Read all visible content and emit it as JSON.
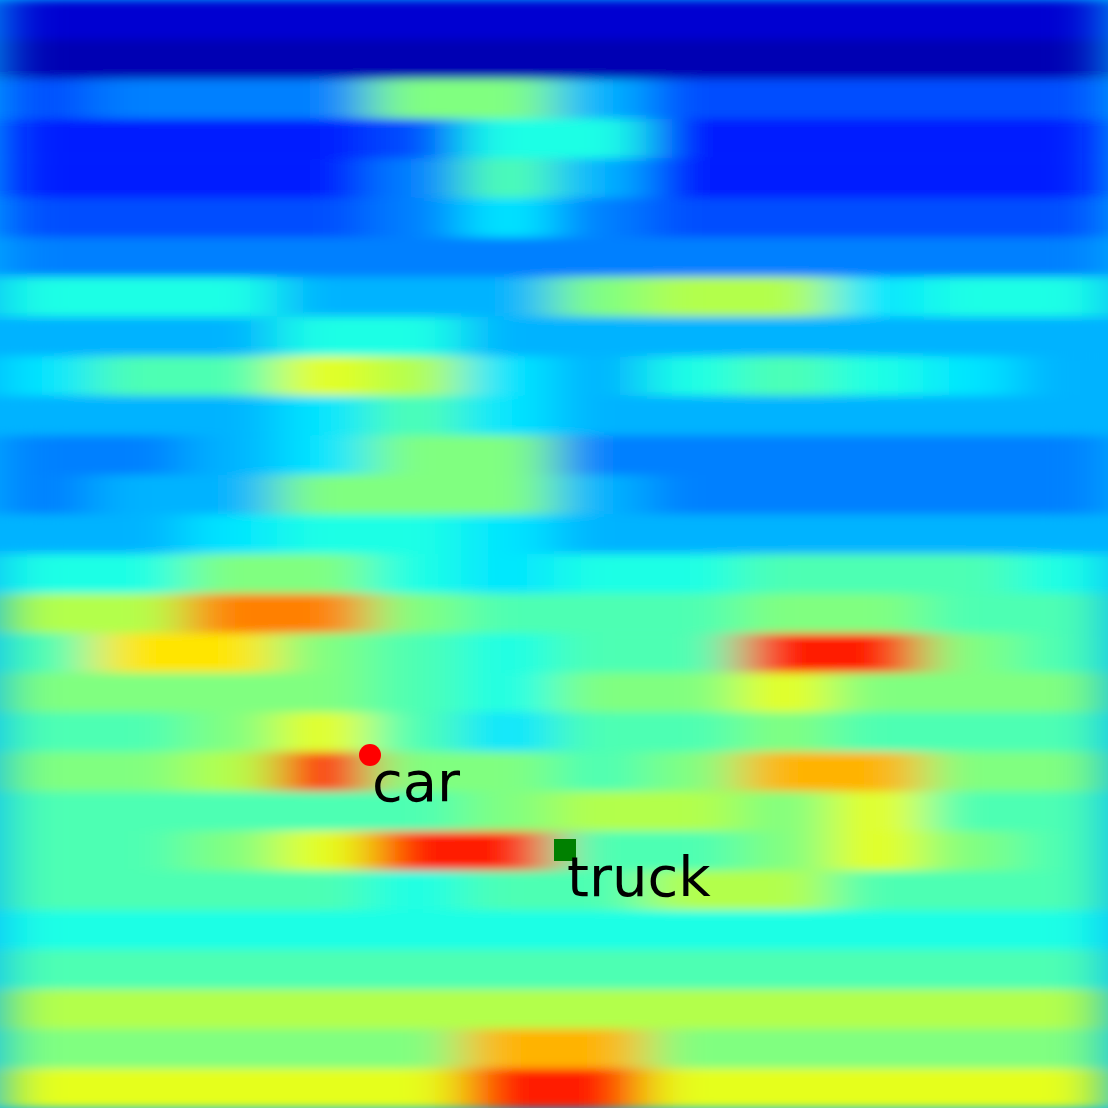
{
  "chart_data": {
    "type": "heatmap",
    "xlim": [
      0,
      1108
    ],
    "ylim": [
      0,
      1108
    ],
    "zlim": [
      0,
      1
    ],
    "tick_labels": false,
    "cells": [
      [
        0.08,
        0.08,
        0.08,
        0.08,
        0.08,
        0.08,
        0.08,
        0.08,
        0.08,
        0.08,
        0.08,
        0.08
      ],
      [
        0.05,
        0.05,
        0.05,
        0.05,
        0.05,
        0.05,
        0.05,
        0.05,
        0.05,
        0.05,
        0.05,
        0.05
      ],
      [
        0.2,
        0.25,
        0.25,
        0.25,
        0.5,
        0.5,
        0.3,
        0.2,
        0.2,
        0.2,
        0.2,
        0.2
      ],
      [
        0.15,
        0.15,
        0.15,
        0.15,
        0.2,
        0.4,
        0.4,
        0.15,
        0.15,
        0.15,
        0.15,
        0.15
      ],
      [
        0.15,
        0.15,
        0.15,
        0.15,
        0.25,
        0.45,
        0.3,
        0.15,
        0.15,
        0.15,
        0.15,
        0.15
      ],
      [
        0.2,
        0.2,
        0.2,
        0.2,
        0.25,
        0.35,
        0.25,
        0.2,
        0.2,
        0.2,
        0.2,
        0.2
      ],
      [
        0.25,
        0.25,
        0.25,
        0.25,
        0.25,
        0.25,
        0.25,
        0.25,
        0.25,
        0.25,
        0.25,
        0.25
      ],
      [
        0.4,
        0.4,
        0.4,
        0.3,
        0.3,
        0.3,
        0.5,
        0.55,
        0.55,
        0.35,
        0.4,
        0.4
      ],
      [
        0.3,
        0.3,
        0.3,
        0.4,
        0.4,
        0.3,
        0.3,
        0.3,
        0.3,
        0.3,
        0.3,
        0.3
      ],
      [
        0.35,
        0.45,
        0.45,
        0.6,
        0.55,
        0.35,
        0.3,
        0.4,
        0.45,
        0.4,
        0.35,
        0.3
      ],
      [
        0.3,
        0.3,
        0.3,
        0.35,
        0.45,
        0.35,
        0.3,
        0.3,
        0.3,
        0.3,
        0.3,
        0.3
      ],
      [
        0.25,
        0.25,
        0.3,
        0.35,
        0.5,
        0.5,
        0.25,
        0.25,
        0.25,
        0.25,
        0.25,
        0.25
      ],
      [
        0.25,
        0.3,
        0.3,
        0.5,
        0.5,
        0.5,
        0.3,
        0.25,
        0.25,
        0.25,
        0.25,
        0.25
      ],
      [
        0.3,
        0.3,
        0.35,
        0.4,
        0.4,
        0.35,
        0.3,
        0.3,
        0.3,
        0.3,
        0.3,
        0.3
      ],
      [
        0.4,
        0.4,
        0.5,
        0.5,
        0.4,
        0.35,
        0.4,
        0.4,
        0.45,
        0.45,
        0.45,
        0.4
      ],
      [
        0.55,
        0.55,
        0.75,
        0.75,
        0.5,
        0.45,
        0.45,
        0.45,
        0.5,
        0.5,
        0.45,
        0.45
      ],
      [
        0.45,
        0.65,
        0.65,
        0.5,
        0.45,
        0.4,
        0.45,
        0.45,
        0.85,
        0.85,
        0.5,
        0.45
      ],
      [
        0.5,
        0.5,
        0.5,
        0.5,
        0.45,
        0.4,
        0.5,
        0.5,
        0.6,
        0.5,
        0.5,
        0.5
      ],
      [
        0.45,
        0.45,
        0.5,
        0.6,
        0.45,
        0.35,
        0.45,
        0.45,
        0.5,
        0.45,
        0.45,
        0.45
      ],
      [
        0.5,
        0.5,
        0.55,
        0.85,
        0.5,
        0.5,
        0.45,
        0.5,
        0.7,
        0.7,
        0.5,
        0.5
      ],
      [
        0.45,
        0.45,
        0.45,
        0.45,
        0.45,
        0.5,
        0.55,
        0.55,
        0.5,
        0.6,
        0.45,
        0.45
      ],
      [
        0.45,
        0.45,
        0.5,
        0.6,
        0.85,
        0.85,
        0.45,
        0.45,
        0.5,
        0.6,
        0.5,
        0.45
      ],
      [
        0.45,
        0.45,
        0.45,
        0.45,
        0.4,
        0.45,
        0.45,
        0.55,
        0.55,
        0.45,
        0.45,
        0.45
      ],
      [
        0.4,
        0.4,
        0.4,
        0.4,
        0.4,
        0.4,
        0.4,
        0.4,
        0.4,
        0.4,
        0.4,
        0.4
      ],
      [
        0.45,
        0.45,
        0.45,
        0.45,
        0.45,
        0.45,
        0.45,
        0.45,
        0.45,
        0.45,
        0.45,
        0.45
      ],
      [
        0.55,
        0.55,
        0.55,
        0.55,
        0.55,
        0.55,
        0.55,
        0.55,
        0.55,
        0.55,
        0.55,
        0.55
      ],
      [
        0.5,
        0.5,
        0.5,
        0.5,
        0.5,
        0.7,
        0.7,
        0.5,
        0.5,
        0.5,
        0.5,
        0.5
      ],
      [
        0.6,
        0.6,
        0.6,
        0.6,
        0.6,
        0.85,
        0.85,
        0.6,
        0.6,
        0.6,
        0.6,
        0.6
      ]
    ],
    "annotations": [
      {
        "label": "car",
        "x": 370,
        "y": 353,
        "color": "red",
        "marker": "circle"
      },
      {
        "label": "truck",
        "x": 565,
        "y": 258,
        "color": "green",
        "marker": "square"
      }
    ]
  }
}
